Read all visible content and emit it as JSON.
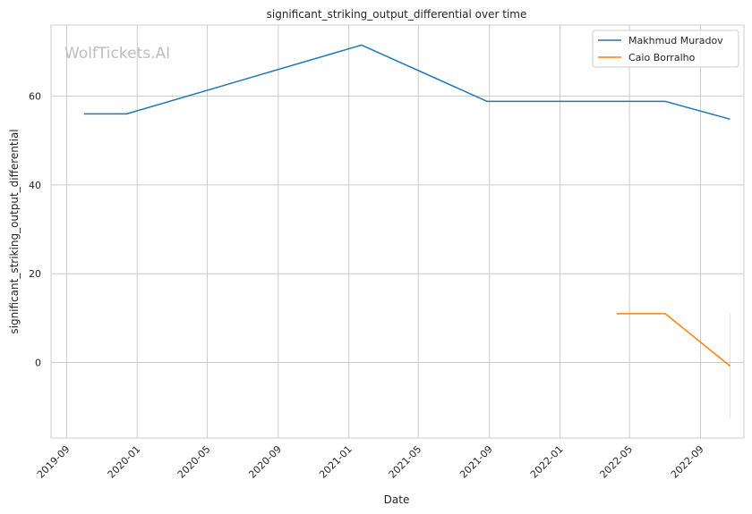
{
  "chart_data": {
    "type": "line",
    "title": "significant_striking_output_differential over time",
    "xlabel": "Date",
    "ylabel": "significant_striking_output_differential",
    "watermark": "WolfTickets.AI",
    "x_ticks": [
      "2019-09",
      "2020-01",
      "2020-05",
      "2020-09",
      "2021-01",
      "2021-05",
      "2021-09",
      "2022-01",
      "2022-05",
      "2022-09"
    ],
    "y_ticks": [
      0,
      20,
      40,
      60
    ],
    "xlim": [
      "2019-08-05",
      "2022-11-15"
    ],
    "ylim": [
      -17,
      76
    ],
    "grid": true,
    "legend_position": "top-right",
    "series": [
      {
        "name": "Makhmud Muradov",
        "color": "#1f77b4",
        "points": [
          {
            "x": "2019-10-01",
            "y": 56.0
          },
          {
            "x": "2019-12-14",
            "y": 56.0
          },
          {
            "x": "2021-01-23",
            "y": 71.5
          },
          {
            "x": "2021-08-28",
            "y": 58.8
          },
          {
            "x": "2022-07-02",
            "y": 58.8
          },
          {
            "x": "2022-10-22",
            "y": 54.8
          }
        ]
      },
      {
        "name": "Caio Borralho",
        "color": "#ff7f0e",
        "points": [
          {
            "x": "2022-04-09",
            "y": 11.0
          },
          {
            "x": "2022-07-02",
            "y": 11.0
          },
          {
            "x": "2022-10-22",
            "y": -0.8
          }
        ],
        "band": {
          "x": "2022-10-22",
          "low": -12.5,
          "high": 11.0
        }
      }
    ]
  }
}
